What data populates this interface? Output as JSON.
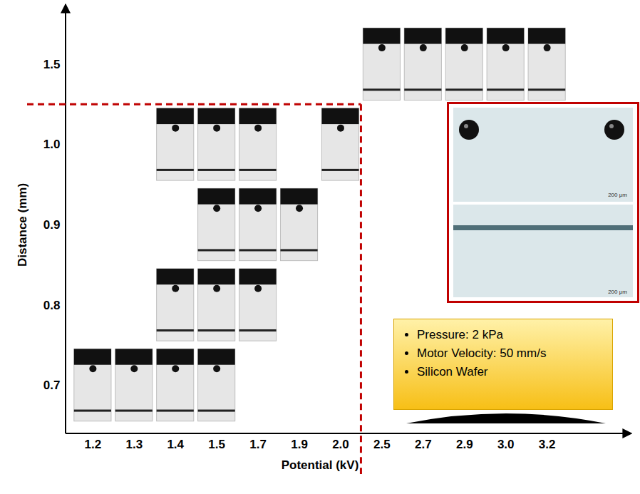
{
  "chart_data": {
    "type": "scatter",
    "marker": "image",
    "x_label": "Potential (kV)",
    "y_label": "Distance (mm)",
    "x_categories": [
      "1.2",
      "1.3",
      "1.4",
      "1.5",
      "1.7",
      "1.9",
      "2.0",
      "2.5",
      "2.7",
      "2.9",
      "3.0",
      "3.2"
    ],
    "y_categories": [
      "0.7",
      "0.8",
      "0.9",
      "1.0",
      "1.5"
    ],
    "points": [
      {
        "x": "1.2",
        "y": "0.7"
      },
      {
        "x": "1.3",
        "y": "0.7"
      },
      {
        "x": "1.4",
        "y": "0.7"
      },
      {
        "x": "1.5",
        "y": "0.7"
      },
      {
        "x": "1.4",
        "y": "0.8"
      },
      {
        "x": "1.5",
        "y": "0.8"
      },
      {
        "x": "1.7",
        "y": "0.8"
      },
      {
        "x": "1.5",
        "y": "0.9"
      },
      {
        "x": "1.7",
        "y": "0.9"
      },
      {
        "x": "1.9",
        "y": "0.9"
      },
      {
        "x": "1.4",
        "y": "1.0"
      },
      {
        "x": "1.5",
        "y": "1.0"
      },
      {
        "x": "1.7",
        "y": "1.0"
      },
      {
        "x": "2.0",
        "y": "1.0"
      },
      {
        "x": "2.5",
        "y": "1.5"
      },
      {
        "x": "2.7",
        "y": "1.5"
      },
      {
        "x": "2.9",
        "y": "1.5"
      },
      {
        "x": "3.0",
        "y": "1.5"
      },
      {
        "x": "3.2",
        "y": "1.5"
      }
    ],
    "region": {
      "x_max": "2.0",
      "y_max": "1.0",
      "color": "#c00000",
      "line_style": "dashed"
    },
    "annotations": [
      "Pressure: 2 kPa",
      "Motor Velocity: 50 mm/s",
      "Silicon Wafer"
    ],
    "inset_scale_labels": [
      "200 μm",
      "200 μm"
    ]
  }
}
